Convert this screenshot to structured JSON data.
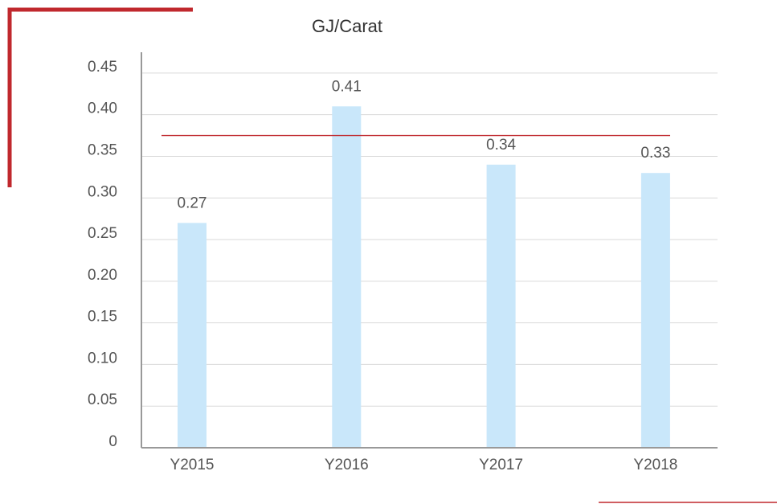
{
  "chart_data": {
    "type": "bar",
    "title": "GJ/Carat",
    "categories": [
      "Y2015",
      "Y2016",
      "Y2017",
      "Y2018"
    ],
    "values": [
      0.27,
      0.41,
      0.34,
      0.33
    ],
    "color": "#c9e7fa",
    "target": 0.375,
    "target_color": "#c0282d",
    "ylim": [
      0,
      0.475
    ],
    "yticks": [
      0,
      0.05,
      {
        "value": 0.1,
        "label": "0.10"
      },
      0.15,
      {
        "value": 0.2,
        "label": "0.20"
      },
      0.25,
      {
        "value": 0.3,
        "label": "0.30"
      },
      0.35,
      {
        "value": 0.4,
        "label": "0.40"
      },
      0.45
    ],
    "grid": true
  }
}
